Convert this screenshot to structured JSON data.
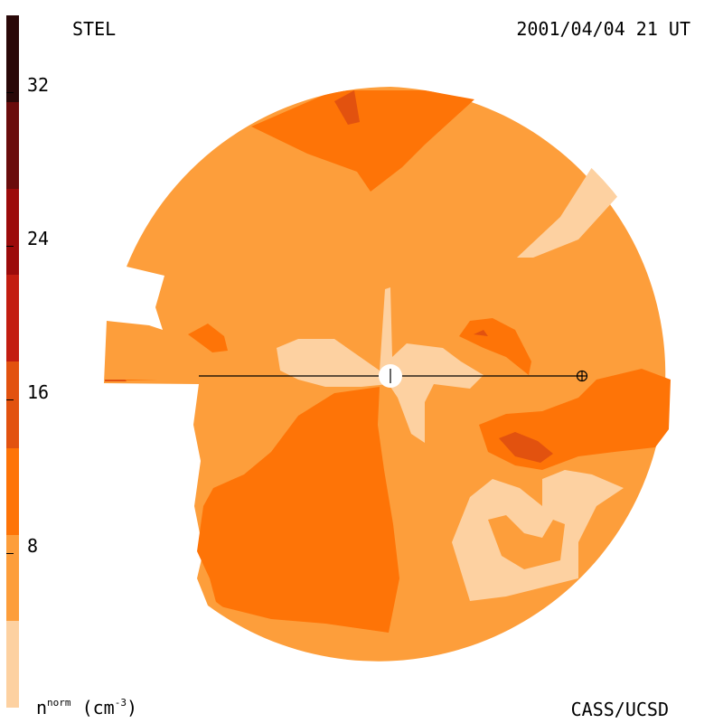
{
  "header": {
    "instrument": "STEL",
    "timestamp": "2001/04/04 21 UT"
  },
  "footer": {
    "credit": "CASS/UCSD",
    "units_base": "n",
    "units_sup": "norm",
    "units_paren_open": " (cm",
    "units_exp": "-3",
    "units_paren_close": ")"
  },
  "colorbar": {
    "tick_labels": [
      "32",
      "24",
      "16",
      "8"
    ],
    "tick_values": [
      32,
      24,
      16,
      8
    ],
    "range": [
      0,
      36
    ],
    "colors": [
      "#fdd1a1",
      "#fd9e3b",
      "#fe7407",
      "#e2520f",
      "#c31d11",
      "#9c0b0b",
      "#6a0c0c",
      "#2a0808"
    ]
  },
  "map": {
    "legend_colors": {
      "lightest": "#fdd1a1",
      "base": "#fd9e3b",
      "medium": "#fe7407",
      "dark": "#e2520f",
      "darker": "#c31d11"
    }
  }
}
